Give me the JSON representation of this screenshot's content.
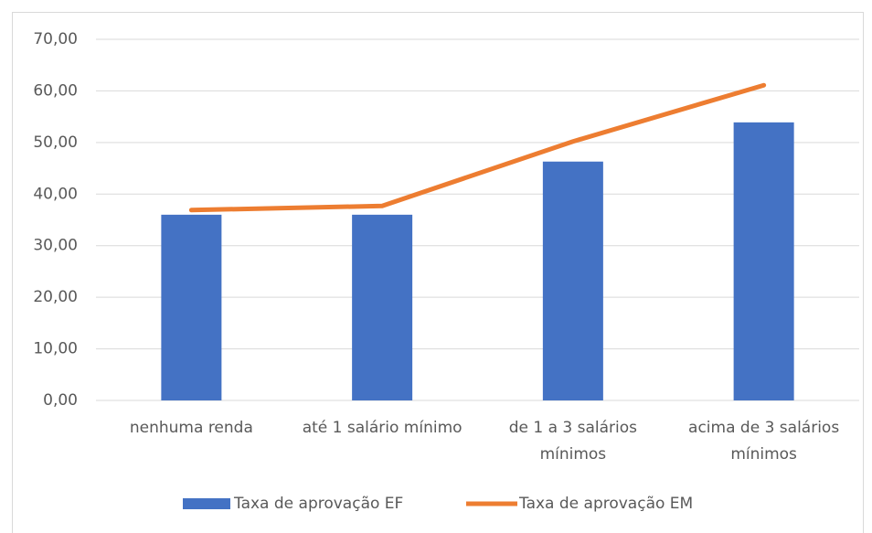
{
  "chart_data": {
    "type": "combo",
    "categories": [
      "nenhuma renda",
      "até 1 salário mínimo",
      "de 1 a 3 salários mínimos",
      "acima de 3 salários mínimos"
    ],
    "series": [
      {
        "name": "Taxa de aprovação EF",
        "type": "bar",
        "color": "#4472c4",
        "values": [
          36.0,
          36.0,
          46.3,
          53.9
        ]
      },
      {
        "name": "Taxa de aprovação EM",
        "type": "line",
        "color": "#ed7d31",
        "values": [
          36.9,
          37.7,
          50.2,
          61.1
        ]
      }
    ],
    "ylim": [
      0,
      70
    ],
    "yticks": [
      {
        "value": 0,
        "label": "0,00"
      },
      {
        "value": 10,
        "label": "10,00"
      },
      {
        "value": 20,
        "label": "20,00"
      },
      {
        "value": 30,
        "label": "30,00"
      },
      {
        "value": 40,
        "label": "40,00"
      },
      {
        "value": 50,
        "label": "50,00"
      },
      {
        "value": 60,
        "label": "60,00"
      },
      {
        "value": 70,
        "label": "70,00"
      }
    ],
    "grid": true,
    "legend": "bottom"
  }
}
